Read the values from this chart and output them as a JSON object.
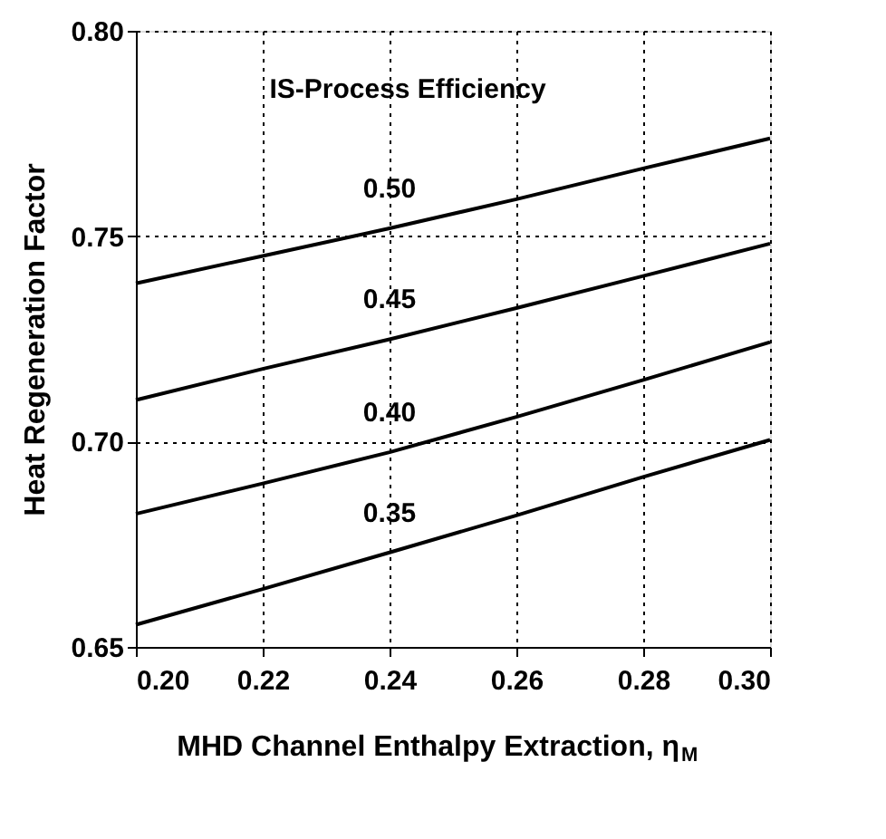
{
  "chart_data": {
    "type": "line",
    "xlabel": "MHD Channel Enthalpy Extraction,  η$_{M}$",
    "ylabel": "Heat Regeneration Factor",
    "legend_title": "IS-Process Efficiency",
    "x": [
      0.2,
      0.22,
      0.24,
      0.26,
      0.28,
      0.3
    ],
    "series": [
      {
        "name": "0.50",
        "color": "#000000",
        "values": [
          0.7385,
          0.7452,
          0.7519,
          0.759,
          0.7665,
          0.7738
        ]
      },
      {
        "name": "0.45",
        "color": "#000000",
        "values": [
          0.7101,
          0.7177,
          0.7249,
          0.7325,
          0.7403,
          0.7482
        ]
      },
      {
        "name": "0.40",
        "color": "#000000",
        "values": [
          0.6824,
          0.6898,
          0.6974,
          0.706,
          0.715,
          0.7242
        ]
      },
      {
        "name": "0.35",
        "color": "#000000",
        "values": [
          0.6554,
          0.6641,
          0.673,
          0.682,
          0.6914,
          0.7004
        ]
      }
    ],
    "xlim": [
      0.2,
      0.3
    ],
    "xticks": [
      {
        "value": 0.2,
        "label": "0.20"
      },
      {
        "value": 0.22,
        "label": "0.22"
      },
      {
        "value": 0.24,
        "label": "0.24"
      },
      {
        "value": 0.26,
        "label": "0.26"
      },
      {
        "value": 0.28,
        "label": "0.28"
      },
      {
        "value": 0.3,
        "label": "0.30"
      }
    ],
    "ylim": [
      0.65,
      0.8
    ],
    "yticks": [
      {
        "value": 0.65,
        "label": "0.65"
      },
      {
        "value": 0.7,
        "label": "0.70"
      },
      {
        "value": 0.75,
        "label": "0.75"
      },
      {
        "value": 0.8,
        "label": "0.80"
      }
    ],
    "grid": true,
    "marker": "none",
    "line_style": "solid"
  }
}
